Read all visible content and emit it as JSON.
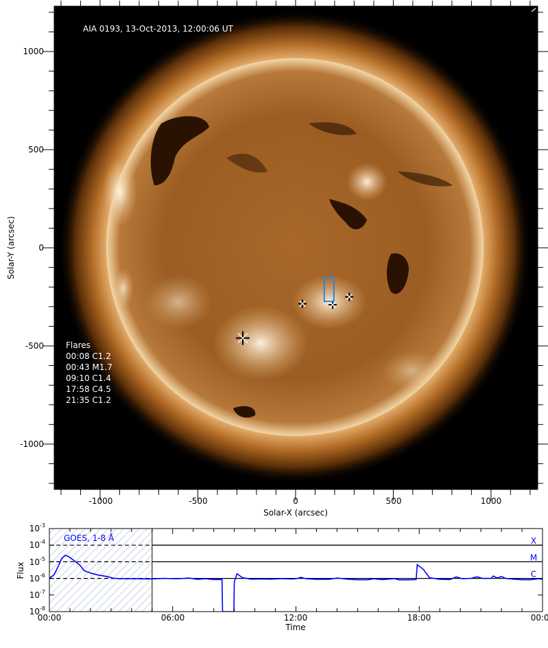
{
  "chart_data": [
    {
      "type": "image",
      "title": "AIA 0193, 13-Oct-2013, 12:00:06 UT",
      "xlabel": "Solar-X (arcsec)",
      "ylabel": "Solar-Y (arcsec)",
      "xlim": [
        -1235,
        1239
      ],
      "ylim": [
        -1231,
        1231
      ],
      "xticks": [
        "-1000",
        "-500",
        "0",
        "500",
        "1000"
      ],
      "yticks": [
        "1000",
        "500",
        "0",
        "-500",
        "-1000"
      ],
      "xtick_values": [
        -1000,
        -500,
        0,
        500,
        1000
      ],
      "ytick_values": [
        1000,
        500,
        0,
        -500,
        -1000
      ],
      "solar_radius_arcsec": 962,
      "flares_legend": {
        "title": "Flares",
        "items": [
          "00:08 C1.2",
          "00:43 M1.7",
          "09:10 C1.4",
          "17:58 C4.5",
          "21:35 C1.2"
        ]
      },
      "flare_markers": [
        {
          "x": -270,
          "y": -460,
          "size": "large"
        },
        {
          "x": 35,
          "y": -285,
          "size": "small"
        },
        {
          "x": 190,
          "y": -290,
          "size": "small"
        },
        {
          "x": 275,
          "y": -250,
          "size": "small"
        }
      ],
      "region_box": {
        "x": [
          147,
          196
        ],
        "y": [
          -273,
          -150
        ],
        "color": "#1e88e5"
      }
    },
    {
      "type": "line",
      "series_label": "GOES, 1-8 Å",
      "xlabel": "Time",
      "ylabel": "Flux",
      "xlim_hours": [
        0,
        24
      ],
      "ylim": [
        1e-08,
        0.001
      ],
      "yscale": "log",
      "xticks": [
        "00:00",
        "06:00",
        "12:00",
        "18:00",
        "00:00"
      ],
      "yticks": [
        {
          "base": "10",
          "exp": "-3"
        },
        {
          "base": "10",
          "exp": "-4"
        },
        {
          "base": "10",
          "exp": "-5"
        },
        {
          "base": "10",
          "exp": "-6"
        },
        {
          "base": "10",
          "exp": "-7"
        },
        {
          "base": "10",
          "exp": "-8"
        }
      ],
      "class_levels": [
        {
          "label": "X",
          "flux": 0.0001
        },
        {
          "label": "M",
          "flux": 1e-05
        },
        {
          "label": "C",
          "flux": 1e-06
        }
      ],
      "hatched_interval_hours": [
        0,
        5
      ],
      "line_color": "#0000ff",
      "series": [
        {
          "hours": [
            0,
            0.1,
            0.2,
            0.3,
            0.45,
            0.6,
            0.77,
            0.95,
            1.2,
            1.5,
            1.7,
            2.0,
            2.37,
            2.8,
            3.15,
            3.6,
            4.2,
            4.8,
            5.2,
            5.6,
            6.0,
            6.3,
            6.8,
            7.2,
            7.6,
            8.0,
            8.3,
            8.4,
            8.43,
            8.98,
            9.0,
            9.13,
            9.4,
            9.8,
            10.3,
            10.8,
            11.3,
            11.8,
            12.0,
            12.25,
            12.5,
            13.0,
            13.6,
            14.0,
            14.5,
            15.0,
            15.5,
            15.8,
            16.2,
            16.8,
            17.0,
            17.5,
            17.85,
            17.9,
            18.2,
            18.5,
            19.0,
            19.5,
            19.8,
            20.1,
            20.5,
            20.8,
            21.1,
            21.5,
            21.6,
            21.8,
            22.0,
            22.2,
            22.6,
            23.0,
            23.4,
            23.8,
            24.0
          ],
          "flux": [
            1e-06,
            1.3e-06,
            1.5e-06,
            2.5e-06,
            6e-06,
            1.6e-05,
            2.5e-05,
            2e-05,
            1.2e-05,
            6e-06,
            2.9e-06,
            2.1e-06,
            1.6e-06,
            1.3e-06,
            1e-06,
            9.5e-07,
            9.5e-07,
            9.3e-07,
            9.5e-07,
            1e-06,
            9.6e-07,
            9.5e-07,
            1.05e-06,
            8.8e-07,
            9.5e-07,
            8.5e-07,
            8.6e-07,
            8.5e-07,
            1e-08,
            1e-08,
            6e-07,
            1.9e-06,
            1.1e-06,
            9e-07,
            9.2e-07,
            9e-07,
            9.6e-07,
            9.2e-07,
            9.5e-07,
            1.15e-06,
            9.5e-07,
            8.8e-07,
            8.8e-07,
            1.05e-06,
            9e-07,
            8.3e-07,
            8.3e-07,
            9.5e-07,
            8.4e-07,
            9.8e-07,
            8.2e-07,
            8.2e-07,
            8.5e-07,
            6.8e-06,
            3.5e-06,
            1.1e-06,
            8.8e-07,
            8.5e-07,
            1.25e-06,
            9.5e-07,
            1e-06,
            1.25e-06,
            1e-06,
            1e-06,
            1.4e-06,
            1.05e-06,
            1.3e-06,
            1e-06,
            9e-07,
            8.3e-07,
            8.3e-07,
            9.5e-07,
            9e-07
          ]
        }
      ]
    }
  ]
}
